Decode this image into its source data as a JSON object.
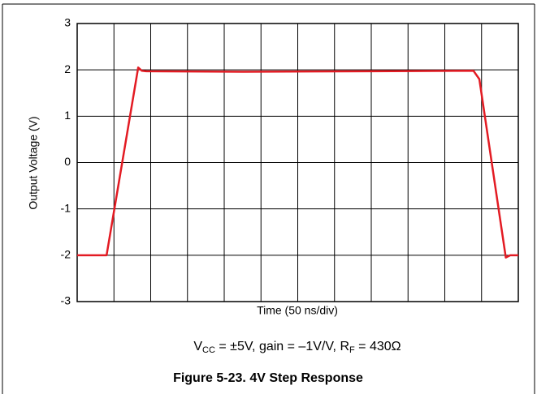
{
  "chart_data": {
    "type": "line",
    "title": "Figure 5-23. 4V Step Response",
    "subtitle_parts": [
      "V",
      "CC",
      " = ±5V, gain = –1V/V, R",
      "F",
      " = 430Ω"
    ],
    "xlabel": "Time (50 ns/div)",
    "ylabel": "Output Voltage (V)",
    "x": [
      0,
      40,
      83,
      88,
      94,
      226,
      400,
      539,
      547,
      583,
      589,
      600
    ],
    "series": [
      {
        "name": "Output",
        "color": "#e31b23",
        "values": [
          -2,
          -2,
          2.05,
          1.98,
          1.97,
          1.96,
          1.97,
          1.98,
          1.8,
          -2.05,
          -2,
          -2
        ]
      }
    ],
    "xlim": [
      0,
      600
    ],
    "xticks": [
      0,
      50,
      100,
      150,
      200,
      250,
      300,
      350,
      400,
      450,
      500,
      550,
      600
    ],
    "ylim": [
      -3,
      3
    ],
    "yticks": [
      -3,
      -2,
      -1,
      0,
      1,
      2,
      3
    ],
    "grid": true
  }
}
